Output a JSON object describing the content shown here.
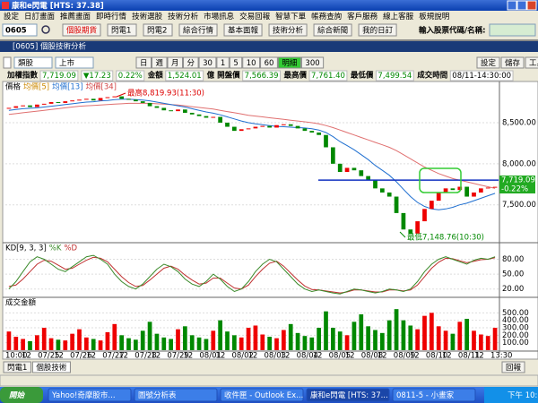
{
  "window_title": "康和e閃電 [HTS: 37.38]",
  "menu": [
    "設定",
    "日訂畫面",
    "推薦畫面",
    "即時行情",
    "技術選股",
    "技術分析",
    "市場訊息",
    "交易回報",
    "智慧下單",
    "帳務查詢",
    "客戶服務",
    "線上客服",
    "板規說明"
  ],
  "toolbar": {
    "code": "0605",
    "buttons": [
      "個股期貨",
      "閃電1",
      "閃電2",
      "綜合行情",
      "基本面報",
      "技術分析",
      "綜合新聞",
      "我的日訂"
    ],
    "search_label": "輸入股票代碼/名稱:"
  },
  "panel_title": "[0605] 個股技術分析",
  "controls": {
    "left": [
      "類股",
      "上市"
    ],
    "periods": [
      "日",
      "週",
      "月",
      "分",
      "30",
      "1",
      "5",
      "10",
      "60",
      "明細",
      "300"
    ],
    "right": [
      "設定",
      "儲存",
      "工具"
    ]
  },
  "quote": [
    {
      "label": "加權指數",
      "value": "7,719.09"
    },
    {
      "value": "▼17.23"
    },
    {
      "value": "0.22%"
    },
    {
      "label": "金額",
      "value": "1,524.01"
    },
    {
      "label": "億"
    },
    {
      "label": "開盤價",
      "value": "7,566.39"
    },
    {
      "label": "最高價",
      "value": "7,761.40"
    },
    {
      "label": "最低價",
      "value": "7,499.54"
    },
    {
      "label": "成交時間",
      "value": "08/11-14:30:00"
    }
  ],
  "price_chart": {
    "type": "candlestick",
    "legend": [
      "價格",
      "均價[5]",
      "均價[13]",
      "均價[34]"
    ],
    "ylim": [
      7050,
      8990
    ],
    "yticks": [
      {
        "value": 8500,
        "label": "8,500.00"
      },
      {
        "value": 8000,
        "label": "8,000.00"
      },
      {
        "value": 7500,
        "label": "7,500.00"
      }
    ],
    "close": [
      8680,
      8700,
      8710,
      8690,
      8720,
      8730,
      8750,
      8740,
      8760,
      8770,
      8780,
      8790,
      8770,
      8800,
      8810,
      8820,
      8790,
      8780,
      8760,
      8740,
      8700,
      8680,
      8650,
      8640,
      8660,
      8620,
      8600,
      8580,
      8560,
      8570,
      8500,
      8450,
      8400,
      8420,
      8430,
      8450,
      8460,
      8440,
      8470,
      8480,
      8460,
      8430,
      8400,
      8380,
      8350,
      8200,
      8000,
      7900,
      7950,
      7920,
      7850,
      7800,
      7700,
      7650,
      7600,
      7400,
      7200,
      7150,
      7300,
      7450,
      7550,
      7650,
      7700,
      7680,
      7720,
      7600,
      7650,
      7700,
      7710,
      7719.09
    ],
    "ma13": [
      8650,
      8660,
      8670,
      8675,
      8680,
      8690,
      8700,
      8710,
      8720,
      8730,
      8740,
      8750,
      8755,
      8765,
      8770,
      8780,
      8785,
      8785,
      8780,
      8775,
      8765,
      8750,
      8735,
      8720,
      8705,
      8690,
      8670,
      8650,
      8630,
      8615,
      8595,
      8570,
      8545,
      8520,
      8500,
      8485,
      8475,
      8465,
      8455,
      8450,
      8445,
      8440,
      8435,
      8425,
      8410,
      8380,
      8330,
      8270,
      8220,
      8170,
      8110,
      8050,
      7980,
      7920,
      7860,
      7780,
      7690,
      7600,
      7530,
      7480,
      7450,
      7440,
      7450,
      7470,
      7500,
      7520,
      7550,
      7580,
      7610,
      7640
    ],
    "ma34": [
      8600,
      8610,
      8620,
      8630,
      8640,
      8650,
      8660,
      8670,
      8680,
      8690,
      8700,
      8705,
      8710,
      8715,
      8720,
      8725,
      8730,
      8735,
      8735,
      8735,
      8735,
      8730,
      8725,
      8720,
      8715,
      8705,
      8695,
      8685,
      8675,
      8665,
      8650,
      8635,
      8620,
      8605,
      8590,
      8580,
      8570,
      8560,
      8550,
      8540,
      8530,
      8520,
      8510,
      8500,
      8485,
      8465,
      8440,
      8410,
      8380,
      8350,
      8320,
      8290,
      8260,
      8230,
      8200,
      8160,
      8110,
      8060,
      8010,
      7960,
      7920,
      7880,
      7850,
      7820,
      7800,
      7780,
      7760,
      7740,
      7720,
      7700
    ],
    "high_note": "最高8,819.93(11:30)",
    "low_note": "最低7,148.76(10:30)",
    "ref_line": 7800,
    "last_label": "7,719.09",
    "last_change": "-0.22%"
  },
  "kd_chart": {
    "type": "line",
    "title": "KD[9, 3, 3]",
    "legend": [
      "%K",
      "%D"
    ],
    "ylim": [
      5,
      108
    ],
    "yticks": [
      {
        "value": 80,
        "label": "80.00"
      },
      {
        "value": 50,
        "label": "50.00"
      },
      {
        "value": 20,
        "label": "20.00"
      }
    ],
    "k": [
      20,
      35,
      55,
      75,
      85,
      80,
      70,
      60,
      55,
      65,
      75,
      85,
      88,
      80,
      70,
      50,
      35,
      25,
      20,
      30,
      45,
      60,
      70,
      65,
      55,
      40,
      30,
      25,
      35,
      50,
      40,
      25,
      15,
      20,
      35,
      55,
      70,
      80,
      75,
      60,
      45,
      30,
      20,
      15,
      18,
      15,
      12,
      10,
      15,
      20,
      18,
      15,
      12,
      15,
      20,
      18,
      15,
      20,
      35,
      55,
      70,
      80,
      85,
      80,
      75,
      70,
      78,
      82,
      80,
      85
    ],
    "d": [
      25,
      28,
      40,
      55,
      70,
      78,
      76,
      68,
      60,
      62,
      70,
      78,
      84,
      82,
      75,
      60,
      45,
      33,
      25,
      27,
      38,
      50,
      62,
      66,
      60,
      48,
      38,
      30,
      32,
      42,
      42,
      32,
      22,
      20,
      28,
      45,
      60,
      72,
      76,
      66,
      52,
      38,
      26,
      19,
      18,
      16,
      14,
      12,
      14,
      18,
      18,
      16,
      14,
      14,
      18,
      18,
      16,
      18,
      28,
      45,
      62,
      74,
      82,
      81,
      77,
      73,
      76,
      79,
      80,
      83
    ]
  },
  "volume_chart": {
    "type": "bar",
    "title": "成交金額",
    "ylim": [
      0,
      660
    ],
    "yticks": [
      {
        "value": 500,
        "label": "500.00"
      },
      {
        "value": 400,
        "label": "400.00"
      },
      {
        "value": 300,
        "label": "300.00"
      },
      {
        "value": 200,
        "label": "200.00"
      },
      {
        "value": 100,
        "label": "100.00"
      }
    ],
    "values": [
      250,
      180,
      150,
      120,
      200,
      300,
      160,
      140,
      130,
      220,
      280,
      170,
      150,
      130,
      240,
      350,
      200,
      160,
      140,
      260,
      380,
      220,
      170,
      150,
      280,
      320,
      200,
      170,
      150,
      260,
      400,
      250,
      200,
      170,
      300,
      330,
      210,
      180,
      160,
      270,
      350,
      230,
      190,
      170,
      300,
      520,
      300,
      250,
      200,
      380,
      480,
      320,
      270,
      230,
      400,
      550,
      400,
      330,
      280,
      460,
      500,
      320,
      260,
      220,
      380,
      420,
      260,
      210,
      190,
      300
    ]
  },
  "x_labels": [
    "10:00",
    "12",
    "07/25",
    "12",
    "07/26",
    "12",
    "07/27",
    "12",
    "07/28",
    "12",
    "07/29",
    "12",
    "08/01",
    "12",
    "08/02",
    "12",
    "08/03",
    "12",
    "08/04",
    "12",
    "08/05",
    "12",
    "08/08",
    "12",
    "08/09",
    "12",
    "08/10",
    "12",
    "08/11",
    "12",
    "13:30"
  ],
  "tabs": [
    "閃電1",
    "個股技術"
  ],
  "report_button": "回報",
  "taskbar": {
    "start": "開始",
    "items": [
      "Yahoo!奇摩股市...",
      "圖號分析表",
      "收件匣 - Outlook Ex...",
      "康和e閃電 [HTS: 37...",
      "0811-5 - 小畫家"
    ],
    "clock": "下午 10:11"
  }
}
